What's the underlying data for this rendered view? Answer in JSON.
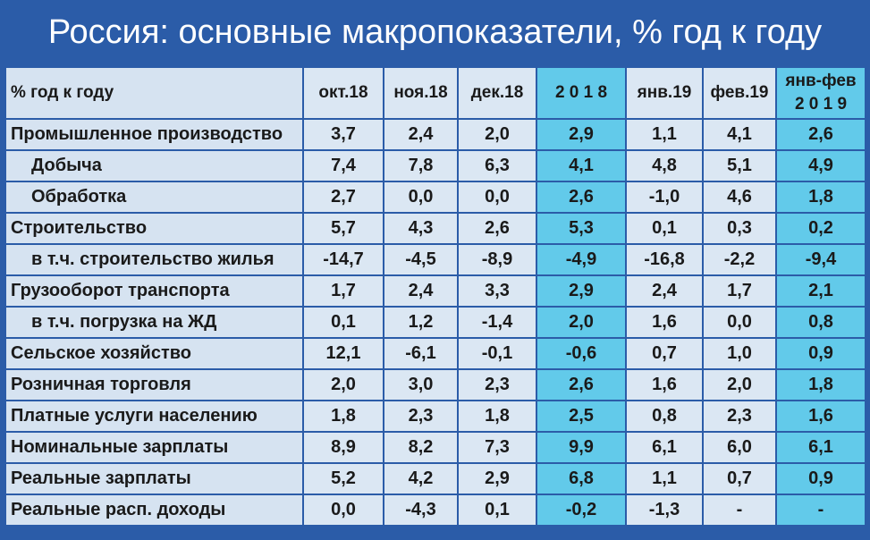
{
  "title": "Россия: основные макропоказатели, % год к году",
  "chart_data": {
    "type": "table",
    "title": "Россия: основные макропоказатели, % год к году",
    "columns": [
      "% год к году",
      "окт.18",
      "ноя.18",
      "дек.18",
      "2 0 1 8",
      "янв.19",
      "фев.19",
      "янв-фев 2 0 1 9"
    ],
    "ytd_header": [
      "янв-фев",
      "2 0 1 9"
    ],
    "rows": [
      {
        "label": "Промышленное производство",
        "indent": false,
        "values": [
          "3,7",
          "2,4",
          "2,0",
          "2,9",
          "1,1",
          "4,1",
          "2,6"
        ]
      },
      {
        "label": "Добыча",
        "indent": true,
        "values": [
          "7,4",
          "7,8",
          "6,3",
          "4,1",
          "4,8",
          "5,1",
          "4,9"
        ]
      },
      {
        "label": "Обработка",
        "indent": true,
        "values": [
          "2,7",
          "0,0",
          "0,0",
          "2,6",
          "-1,0",
          "4,6",
          "1,8"
        ]
      },
      {
        "label": "Строительство",
        "indent": false,
        "values": [
          "5,7",
          "4,3",
          "2,6",
          "5,3",
          "0,1",
          "0,3",
          "0,2"
        ]
      },
      {
        "label": "в т.ч. строительство жилья",
        "indent": true,
        "values": [
          "-14,7",
          "-4,5",
          "-8,9",
          "-4,9",
          "-16,8",
          "-2,2",
          "-9,4"
        ]
      },
      {
        "label": "Грузооборот транспорта",
        "indent": false,
        "values": [
          "1,7",
          "2,4",
          "3,3",
          "2,9",
          "2,4",
          "1,7",
          "2,1"
        ]
      },
      {
        "label": "в т.ч. погрузка на ЖД",
        "indent": true,
        "values": [
          "0,1",
          "1,2",
          "-1,4",
          "2,0",
          "1,6",
          "0,0",
          "0,8"
        ]
      },
      {
        "label": "Сельское хозяйство",
        "indent": false,
        "values": [
          "12,1",
          "-6,1",
          "-0,1",
          "-0,6",
          "0,7",
          "1,0",
          "0,9"
        ]
      },
      {
        "label": "Розничная торговля",
        "indent": false,
        "values": [
          "2,0",
          "3,0",
          "2,3",
          "2,6",
          "1,6",
          "2,0",
          "1,8"
        ]
      },
      {
        "label": "Платные услуги населению",
        "indent": false,
        "values": [
          "1,8",
          "2,3",
          "1,8",
          "2,5",
          "0,8",
          "2,3",
          "1,6"
        ]
      },
      {
        "label": "Номинальные зарплаты",
        "indent": false,
        "values": [
          "8,9",
          "8,2",
          "7,3",
          "9,9",
          "6,1",
          "6,0",
          "6,1"
        ]
      },
      {
        "label": "Реальные зарплаты",
        "indent": false,
        "values": [
          "5,2",
          "4,2",
          "2,9",
          "6,8",
          "1,1",
          "0,7",
          "0,9"
        ]
      },
      {
        "label": "Реальные расп. доходы",
        "indent": false,
        "values": [
          "0,0",
          "-4,3",
          "0,1",
          "-0,2",
          "-1,3",
          "-",
          "-"
        ]
      }
    ],
    "highlight_columns": [
      4,
      7
    ],
    "colors": {
      "background": "#2b5ca8",
      "cell": "#dbe7f3",
      "highlight": "#62caea",
      "negative": "#c0000c",
      "text": "#1a1a1a"
    }
  }
}
